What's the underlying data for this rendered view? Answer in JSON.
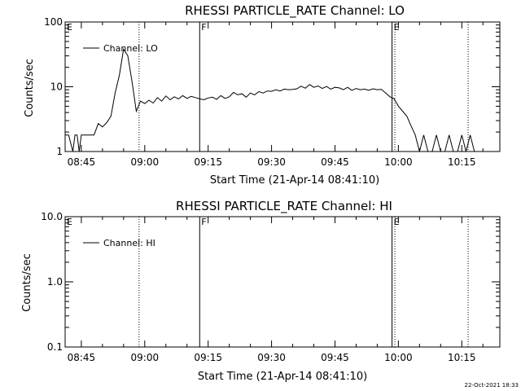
{
  "chart_data": [
    {
      "type": "line",
      "title": "RHESSI PARTICLE_RATE Channel: LO",
      "xlabel": "Start Time (21-Apr-14 08:41:10)",
      "ylabel": "Counts/sec",
      "y_scale": "log",
      "ylim": [
        1,
        100
      ],
      "y_ticks": [
        {
          "v": 1,
          "label": "1"
        },
        {
          "v": 10,
          "label": "10"
        },
        {
          "v": 100,
          "label": "100"
        }
      ],
      "xlim": [
        "08:41:10",
        "10:24:00"
      ],
      "x_ticks": [
        "08:45",
        "09:00",
        "09:15",
        "09:30",
        "09:45",
        "10:00",
        "10:15"
      ],
      "legend": {
        "position": "top-left",
        "entries": [
          "Channel: LO"
        ]
      },
      "markers": [
        {
          "time": "09:13:00",
          "label": "F",
          "style": "solid"
        },
        {
          "time": "09:58:30",
          "label": "E",
          "style": "solid"
        },
        {
          "time": "08:41:10",
          "label": "E",
          "style": "none"
        },
        {
          "time": "08:58:40",
          "label": "",
          "style": "dotted"
        },
        {
          "time": "09:59:10",
          "label": "",
          "style": "dotted"
        },
        {
          "time": "10:16:30",
          "label": "",
          "style": "dotted"
        }
      ],
      "series": [
        {
          "name": "Channel: LO",
          "x": [
            "08:41:10",
            "08:42:00",
            "08:43:00",
            "08:43:30",
            "08:44:00",
            "08:44:30",
            "08:45:00",
            "08:46:00",
            "08:47:00",
            "08:48:00",
            "08:49:00",
            "08:50:00",
            "08:51:00",
            "08:52:00",
            "08:53:00",
            "08:54:00",
            "08:55:00",
            "08:56:00",
            "08:57:00",
            "08:58:00",
            "08:59:00",
            "09:00:00",
            "09:01:00",
            "09:02:00",
            "09:03:00",
            "09:04:00",
            "09:05:00",
            "09:06:00",
            "09:07:00",
            "09:08:00",
            "09:09:00",
            "09:10:00",
            "09:11:00",
            "09:12:00",
            "09:13:00",
            "09:14:00",
            "09:15:00",
            "09:16:00",
            "09:17:00",
            "09:18:00",
            "09:19:00",
            "09:20:00",
            "09:21:00",
            "09:22:00",
            "09:23:00",
            "09:24:00",
            "09:25:00",
            "09:26:00",
            "09:27:00",
            "09:28:00",
            "09:29:00",
            "09:30:00",
            "09:31:00",
            "09:32:00",
            "09:33:00",
            "09:34:00",
            "09:35:00",
            "09:36:00",
            "09:37:00",
            "09:38:00",
            "09:39:00",
            "09:40:00",
            "09:41:00",
            "09:42:00",
            "09:43:00",
            "09:44:00",
            "09:45:00",
            "09:46:00",
            "09:47:00",
            "09:48:00",
            "09:49:00",
            "09:50:00",
            "09:51:00",
            "09:52:00",
            "09:53:00",
            "09:54:00",
            "09:55:00",
            "09:56:00",
            "09:57:00",
            "09:58:00",
            "09:59:00",
            "10:00:00",
            "10:01:00",
            "10:02:00",
            "10:03:00",
            "10:04:00",
            "10:05:00",
            "10:06:00",
            "10:07:00",
            "10:08:00",
            "10:09:00",
            "10:10:00",
            "10:11:00",
            "10:12:00",
            "10:13:00",
            "10:14:00",
            "10:15:00",
            "10:16:00",
            "10:17:00",
            "10:18:00"
          ],
          "values": [
            1.8,
            1.8,
            1.0,
            1.8,
            1.8,
            1.0,
            1.8,
            1.8,
            1.8,
            1.8,
            2.7,
            2.4,
            2.8,
            3.5,
            8.0,
            15.0,
            38.0,
            30.0,
            12.0,
            4.2,
            6.0,
            5.5,
            6.2,
            5.6,
            6.8,
            6.0,
            7.2,
            6.3,
            7.0,
            6.5,
            7.3,
            6.6,
            7.1,
            6.8,
            6.5,
            6.3,
            6.7,
            6.9,
            6.4,
            7.3,
            6.6,
            7.0,
            8.2,
            7.5,
            7.8,
            6.9,
            8.0,
            7.5,
            8.4,
            8.0,
            8.6,
            8.5,
            9.0,
            8.6,
            9.2,
            9.0,
            9.1,
            9.3,
            10.2,
            9.5,
            10.8,
            9.8,
            10.3,
            9.4,
            10.1,
            9.2,
            9.8,
            9.6,
            9.0,
            9.8,
            8.8,
            9.4,
            9.0,
            9.2,
            8.8,
            9.3,
            9.0,
            9.1,
            8.0,
            7.0,
            6.5,
            5.0,
            4.2,
            3.5,
            2.5,
            1.8,
            1.0,
            1.8,
            1.0,
            1.0,
            1.8,
            1.0,
            1.0,
            1.8,
            1.0,
            1.0,
            1.8,
            1.0,
            1.8,
            1.0
          ]
        }
      ]
    },
    {
      "type": "line",
      "title": "RHESSI PARTICLE_RATE Channel: HI",
      "xlabel": "Start Time (21-Apr-14 08:41:10)",
      "ylabel": "Counts/sec",
      "y_scale": "log",
      "ylim": [
        0.1,
        10
      ],
      "y_ticks": [
        {
          "v": 0.1,
          "label": "0.1"
        },
        {
          "v": 1,
          "label": "1.0"
        },
        {
          "v": 10,
          "label": "10.0"
        }
      ],
      "xlim": [
        "08:41:10",
        "10:24:00"
      ],
      "x_ticks": [
        "08:45",
        "09:00",
        "09:15",
        "09:30",
        "09:45",
        "10:00",
        "10:15"
      ],
      "legend": {
        "position": "top-left",
        "entries": [
          "Channel: HI"
        ]
      },
      "markers": [
        {
          "time": "09:13:00",
          "label": "F",
          "style": "solid"
        },
        {
          "time": "09:58:30",
          "label": "E",
          "style": "solid"
        },
        {
          "time": "08:41:10",
          "label": "E",
          "style": "none"
        },
        {
          "time": "08:58:40",
          "label": "",
          "style": "dotted"
        },
        {
          "time": "09:59:10",
          "label": "",
          "style": "dotted"
        },
        {
          "time": "10:16:30",
          "label": "",
          "style": "dotted"
        }
      ],
      "series": [
        {
          "name": "Channel: HI",
          "x": [],
          "values": []
        }
      ]
    }
  ],
  "timestamp": "22-Oct-2021 18:33"
}
